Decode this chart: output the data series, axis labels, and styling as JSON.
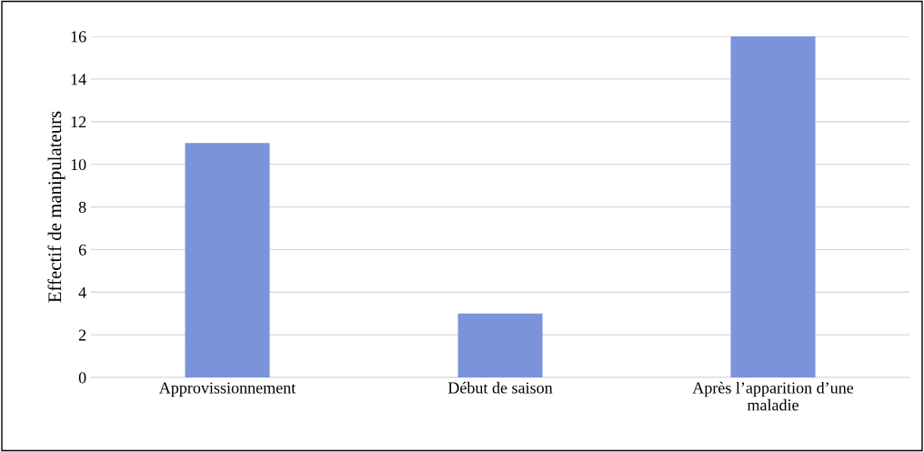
{
  "chart_data": {
    "type": "bar",
    "ylabel": "Effectif de manipulateurs",
    "categories": [
      "Approvissionnement",
      "Début de saison",
      "Après l’apparition d’une maladie"
    ],
    "values": [
      11,
      3,
      16
    ],
    "color": "#7a93db",
    "ylim": [
      0,
      16
    ],
    "yticks": [
      0,
      2,
      4,
      6,
      8,
      10,
      12,
      14,
      16
    ],
    "grid": "y"
  }
}
